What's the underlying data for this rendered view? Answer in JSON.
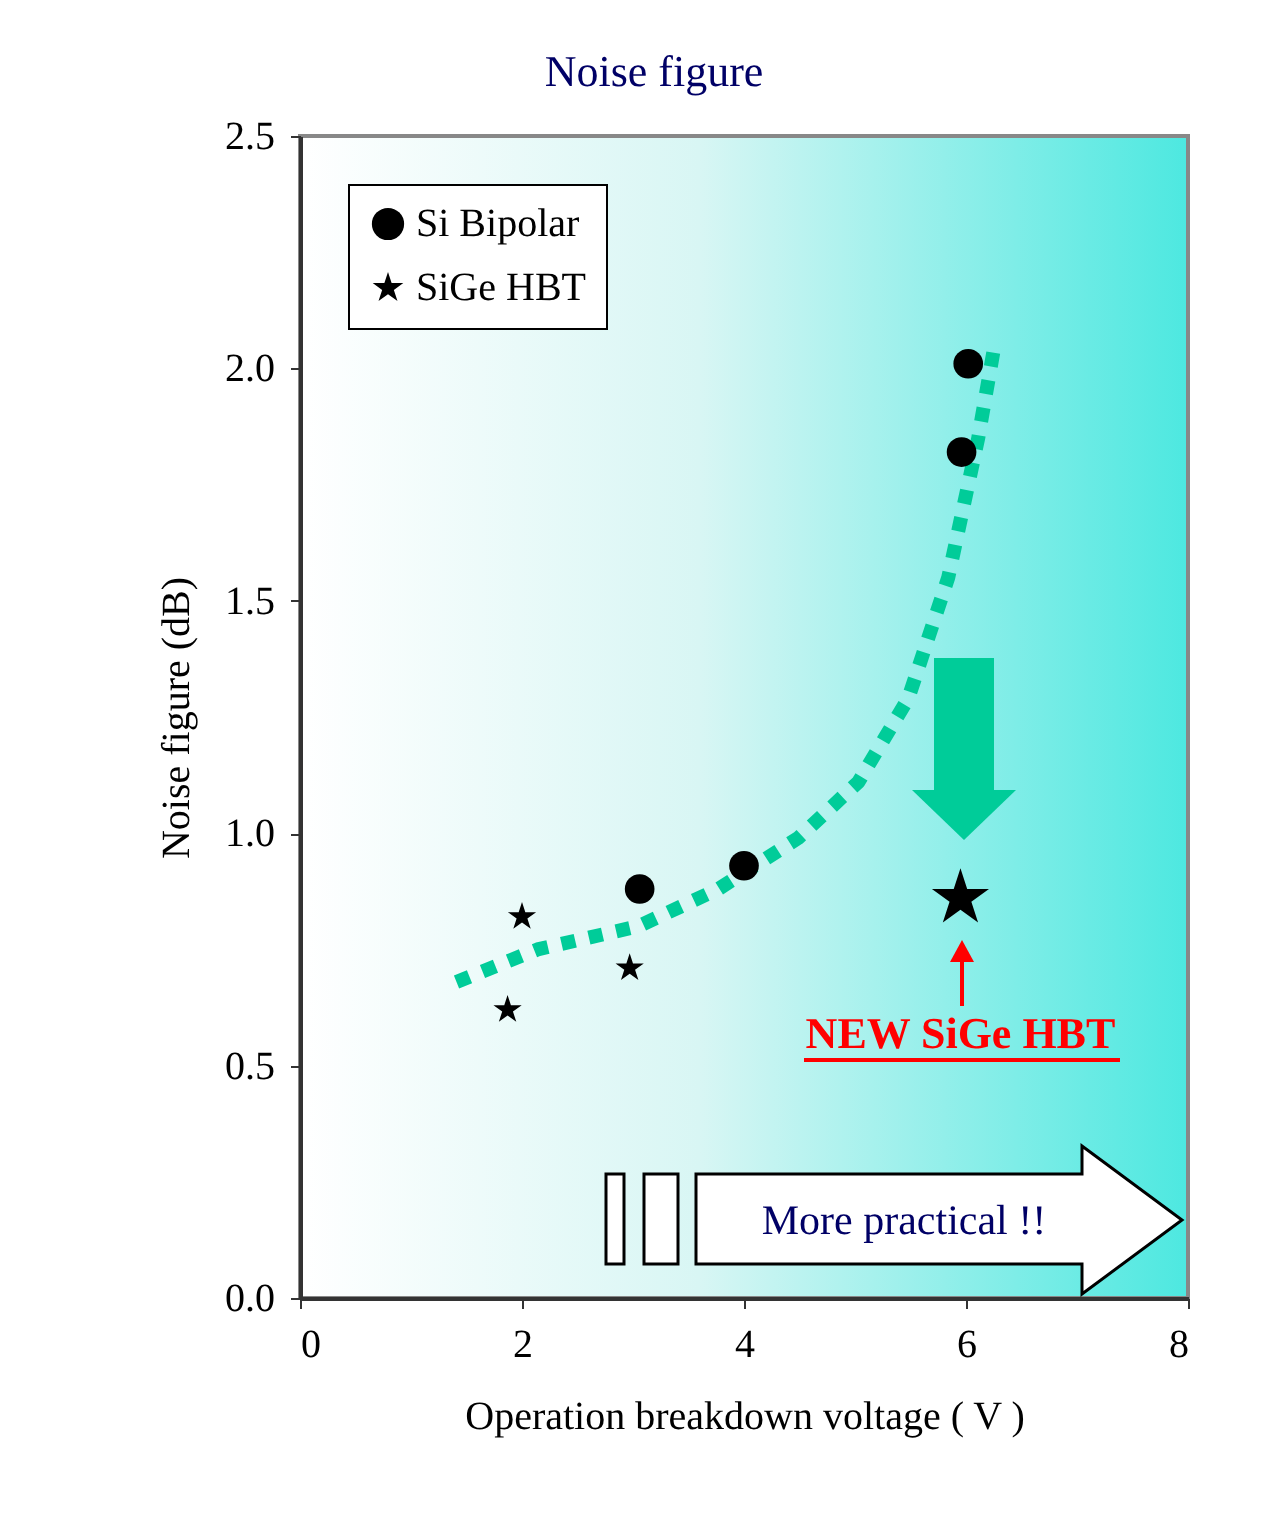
{
  "chart_data": {
    "type": "scatter",
    "title": "Noise figure",
    "xlabel": "Operation breakdown voltage ( V )",
    "ylabel": "Noise figure (dB)",
    "xlim": [
      0,
      8
    ],
    "xticks": [
      0,
      2,
      4,
      6,
      8
    ],
    "ylim": [
      0,
      2.5
    ],
    "yticks": [
      {
        "value": 0,
        "label": "0.0"
      },
      0.5,
      {
        "value": 1,
        "label": "1.0"
      },
      1.5,
      {
        "value": 2,
        "label": "2.0"
      },
      2.5
    ],
    "legend": "top left",
    "series": [
      {
        "name": "Si Bipolar",
        "color": "#000000",
        "marker": "circle",
        "x": [
          3.06,
          4.0,
          5.96,
          6.02
        ],
        "values": [
          0.88,
          0.93,
          1.82,
          2.01
        ]
      },
      {
        "name": "SiGe HBT",
        "color": "#000000",
        "marker": "star",
        "x": [
          1.87,
          2.0,
          2.97
        ],
        "values": [
          0.62,
          0.82,
          0.71
        ]
      },
      {
        "color": "#000000",
        "marker": "star",
        "x": [
          5.95
        ],
        "values": [
          0.86
        ]
      },
      {
        "type": "line",
        "color": "#00cc99",
        "line_style": "dotted",
        "x": [
          1.41,
          2.14,
          3.05,
          3.77,
          4.49,
          5.03,
          5.48,
          5.84,
          6.11,
          6.25
        ],
        "values": [
          0.68,
          0.75,
          0.8,
          0.88,
          0.99,
          1.11,
          1.29,
          1.55,
          1.85,
          2.04
        ]
      }
    ],
    "annotations": [
      {
        "text": "NEW SiGe HBT",
        "x": 5.95,
        "y": 0.86
      },
      "More practical !!"
    ]
  }
}
